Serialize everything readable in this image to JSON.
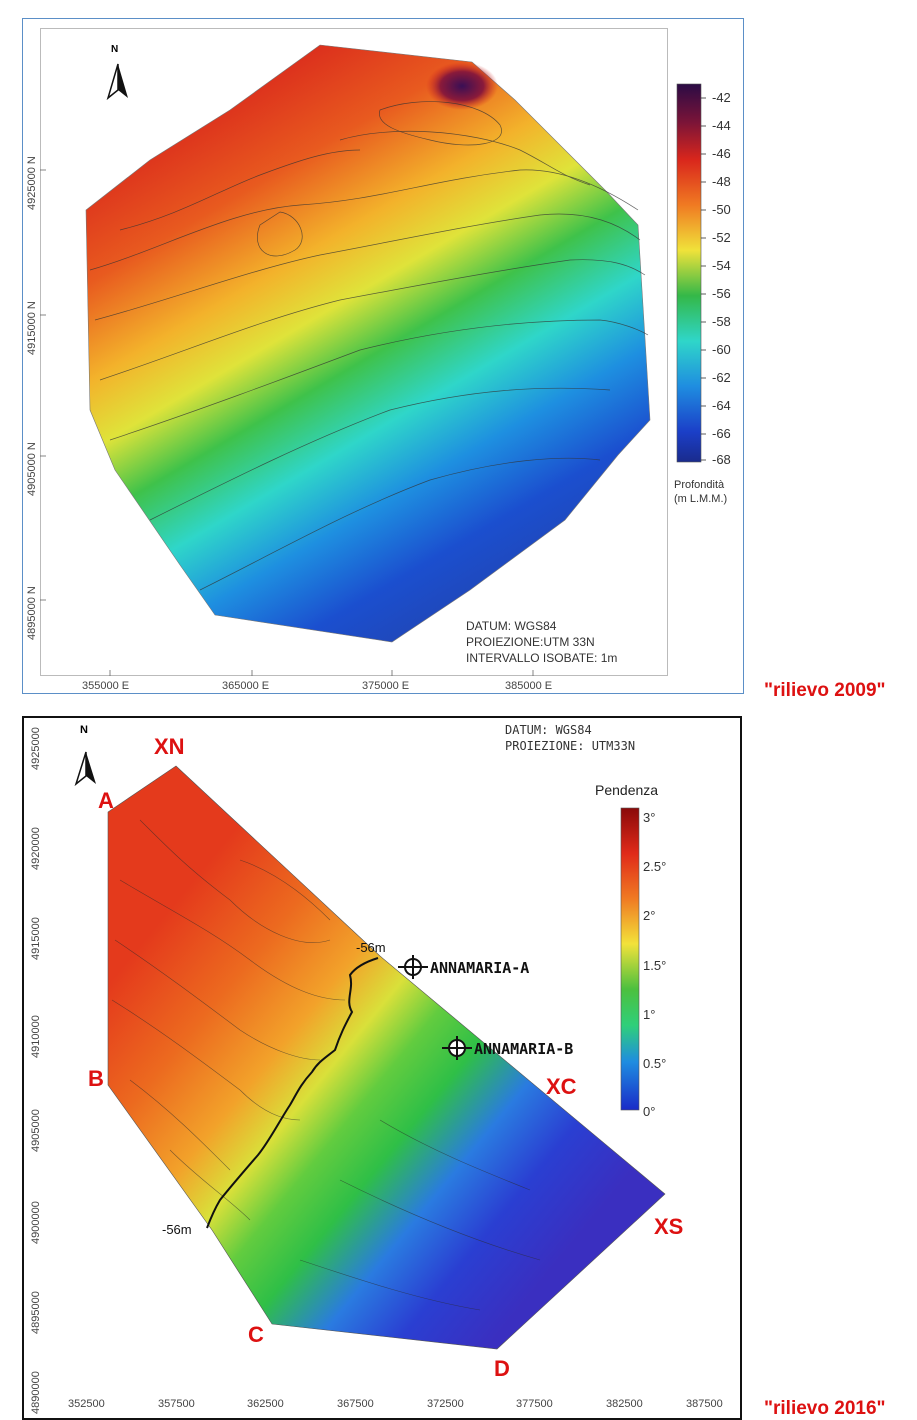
{
  "map1": {
    "caption": "\"rilievo 2009\"",
    "north": "N",
    "legend_title_1": "Profondità",
    "legend_title_2": "(m L.M.M.)",
    "legend_ticks": [
      "-42",
      "-44",
      "-46",
      "-48",
      "-50",
      "-52",
      "-54",
      "-56",
      "-58",
      "-60",
      "-62",
      "-64",
      "-66",
      "-68"
    ],
    "y_ticks": [
      "4925000 N",
      "4915000 N",
      "4905000 N",
      "4895000 N"
    ],
    "x_ticks": [
      "355000 E",
      "365000 E",
      "375000 E",
      "385000 E"
    ],
    "info": [
      "DATUM: WGS84",
      "PROIEZIONE:UTM 33N",
      "INTERVALLO ISOBATE: 1m"
    ]
  },
  "map2": {
    "caption": "\"rilievo 2016\"",
    "north": "N",
    "info": [
      "DATUM: WGS84",
      "PROIEZIONE: UTM33N"
    ],
    "legend_title": "Pendenza",
    "legend_ticks": [
      "3°",
      "2.5°",
      "2°",
      "1.5°",
      "1°",
      "0.5°",
      "0°"
    ],
    "y_ticks": [
      "4925000",
      "4920000",
      "4915000",
      "4910000",
      "4905000",
      "4900000",
      "4895000",
      "4890000"
    ],
    "x_ticks": [
      "352500",
      "357500",
      "362500",
      "367500",
      "372500",
      "377500",
      "382500",
      "387500"
    ],
    "points": {
      "XN": "XN",
      "A": "A",
      "B": "B",
      "C": "C",
      "D": "D",
      "XC": "XC",
      "XS": "XS"
    },
    "contour_label_top": "-56m",
    "contour_label_bottom": "-56m",
    "well_a": "ANNAMARIA-A",
    "well_b": "ANNAMARIA-B"
  },
  "colors": {
    "frame_blue": "#5b8fc7",
    "caption_red": "#dd1111"
  }
}
